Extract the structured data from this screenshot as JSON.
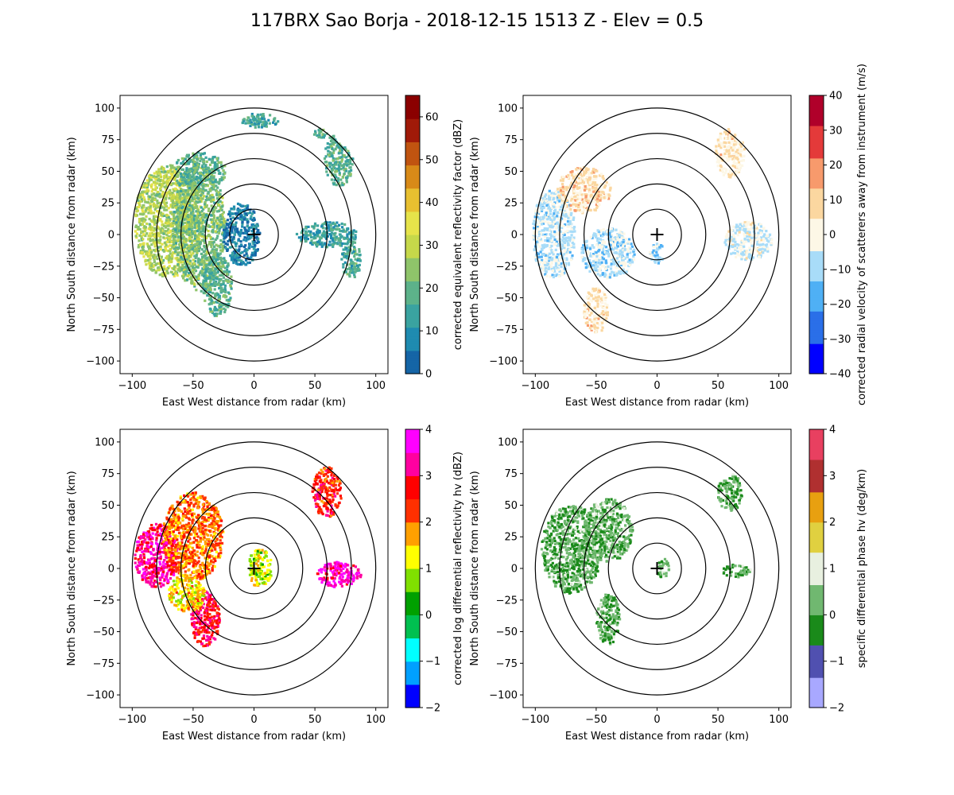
{
  "figure": {
    "title": "117BRX Sao Borja - 2018-12-15 1513 Z -  Elev = 0.5"
  },
  "chart_data": [
    {
      "type": "heatmap",
      "name": "reflectivity",
      "field": "corrected equivalent reflectivity factor",
      "xlabel": "East West distance from radar (km)",
      "ylabel": "North South distance from radar (km)",
      "xlim": [
        -110,
        110
      ],
      "ylim": [
        -110,
        110
      ],
      "xticks": [
        -100,
        -50,
        0,
        50,
        100
      ],
      "yticks": [
        -100,
        -75,
        -50,
        -25,
        0,
        25,
        50,
        75,
        100
      ],
      "range_rings_km": [
        20,
        40,
        60,
        80,
        100
      ],
      "radar_location": [
        0,
        0
      ],
      "colorbar": {
        "label": "corrected equivalent reflectivity factor (dBZ)",
        "range": [
          0,
          65
        ],
        "ticks": [
          0,
          10,
          20,
          30,
          40,
          50,
          60
        ],
        "colors": [
          "#1565a6",
          "#1f8bb0",
          "#3aa3a0",
          "#5db28a",
          "#8fc46a",
          "#c6d84a",
          "#e6e34a",
          "#e8c030",
          "#d88a18",
          "#c05410",
          "#a01a08",
          "#8b0000"
        ]
      },
      "echoes": [
        {
          "x": -70,
          "y": 10,
          "rx": 28,
          "ry": 45,
          "value": 28
        },
        {
          "x": -45,
          "y": 5,
          "rx": 22,
          "ry": 50,
          "value": 22
        },
        {
          "x": -30,
          "y": -40,
          "rx": 12,
          "ry": 25,
          "value": 18
        },
        {
          "x": -45,
          "y": 50,
          "rx": 22,
          "ry": 15,
          "value": 18
        },
        {
          "x": -10,
          "y": 0,
          "rx": 15,
          "ry": 25,
          "value": 6
        },
        {
          "x": 70,
          "y": 60,
          "rx": 12,
          "ry": 22,
          "value": 18
        },
        {
          "x": 60,
          "y": 0,
          "rx": 25,
          "ry": 10,
          "value": 14
        },
        {
          "x": 80,
          "y": -20,
          "rx": 8,
          "ry": 15,
          "value": 15
        },
        {
          "x": 5,
          "y": 90,
          "rx": 15,
          "ry": 6,
          "value": 15
        },
        {
          "x": 55,
          "y": 80,
          "rx": 6,
          "ry": 4,
          "value": 18
        }
      ]
    },
    {
      "type": "heatmap",
      "name": "velocity",
      "field": "corrected radial velocity of scatterers away from instrument",
      "xlabel": "East West distance from radar (km)",
      "ylabel": "North South distance from radar (km)",
      "xlim": [
        -110,
        110
      ],
      "ylim": [
        -110,
        110
      ],
      "xticks": [
        -100,
        -50,
        0,
        50,
        100
      ],
      "yticks": [
        -100,
        -75,
        -50,
        -25,
        0,
        25,
        50,
        75,
        100
      ],
      "range_rings_km": [
        20,
        40,
        60,
        80,
        100
      ],
      "radar_location": [
        0,
        0
      ],
      "colorbar": {
        "label": "corrected radial velocity of scatterers away from instrument (m/s)",
        "range": [
          -40,
          40
        ],
        "ticks": [
          -40,
          -30,
          -20,
          -10,
          0,
          10,
          20,
          30,
          40
        ],
        "colors": [
          "#0000ff",
          "#2a6fe8",
          "#4fb0f5",
          "#a8dcf8",
          "#fdf7e6",
          "#fbd7a0",
          "#f79a6c",
          "#e43a3a",
          "#b0002a"
        ]
      },
      "echoes": [
        {
          "x": -85,
          "y": 0,
          "rx": 18,
          "ry": 35,
          "value": -7
        },
        {
          "x": -40,
          "y": -15,
          "rx": 22,
          "ry": 20,
          "value": -8
        },
        {
          "x": -60,
          "y": 35,
          "rx": 22,
          "ry": 18,
          "value": 7
        },
        {
          "x": -50,
          "y": -60,
          "rx": 10,
          "ry": 18,
          "value": 6
        },
        {
          "x": 60,
          "y": 65,
          "rx": 12,
          "ry": 20,
          "value": 5
        },
        {
          "x": 75,
          "y": -5,
          "rx": 20,
          "ry": 15,
          "value": -3
        },
        {
          "x": 0,
          "y": -15,
          "rx": 6,
          "ry": 8,
          "value": -10
        }
      ]
    },
    {
      "type": "heatmap",
      "name": "differential_reflectivity",
      "field": "corrected log differential reflectivity hv",
      "xlabel": "East West distance from radar (km)",
      "ylabel": "North South distance from radar (km)",
      "xlim": [
        -110,
        110
      ],
      "ylim": [
        -110,
        110
      ],
      "xticks": [
        -100,
        -50,
        0,
        50,
        100
      ],
      "yticks": [
        -100,
        -75,
        -50,
        -25,
        0,
        25,
        50,
        75,
        100
      ],
      "range_rings_km": [
        20,
        40,
        60,
        80,
        100
      ],
      "radar_location": [
        0,
        0
      ],
      "colorbar": {
        "label": "corrected log differential reflectivity hv (dBZ)",
        "range": [
          -2,
          4
        ],
        "ticks": [
          -2,
          -1,
          0,
          1,
          2,
          3,
          4
        ],
        "colors": [
          "#0000ff",
          "#00a0ff",
          "#00ffff",
          "#00c050",
          "#00a000",
          "#80e000",
          "#ffff00",
          "#ffa000",
          "#ff3000",
          "#ff0000",
          "#ff00a0",
          "#ff00ff"
        ]
      },
      "echoes": [
        {
          "x": -80,
          "y": 10,
          "rx": 18,
          "ry": 25,
          "value": 3.2
        },
        {
          "x": -50,
          "y": 25,
          "rx": 25,
          "ry": 35,
          "value": 2.0
        },
        {
          "x": -40,
          "y": -40,
          "rx": 12,
          "ry": 22,
          "value": 2.8
        },
        {
          "x": -55,
          "y": -20,
          "rx": 15,
          "ry": 15,
          "value": 1.4
        },
        {
          "x": 60,
          "y": 60,
          "rx": 12,
          "ry": 20,
          "value": 2.5
        },
        {
          "x": 70,
          "y": -5,
          "rx": 18,
          "ry": 10,
          "value": 3.5
        },
        {
          "x": 5,
          "y": 0,
          "rx": 10,
          "ry": 15,
          "value": 1.0
        }
      ]
    },
    {
      "type": "heatmap",
      "name": "specific_differential_phase",
      "field": "specific differential phase hv",
      "xlabel": "East West distance from radar (km)",
      "ylabel": "North South distance from radar (km)",
      "xlim": [
        -110,
        110
      ],
      "ylim": [
        -110,
        110
      ],
      "xticks": [
        -100,
        -50,
        0,
        50,
        100
      ],
      "yticks": [
        -100,
        -75,
        -50,
        -25,
        0,
        25,
        50,
        75,
        100
      ],
      "range_rings_km": [
        20,
        40,
        60,
        80,
        100
      ],
      "radar_location": [
        0,
        0
      ],
      "colorbar": {
        "label": "specific differential phase hv (deg/km)",
        "range": [
          -2,
          4
        ],
        "ticks": [
          -2,
          -1,
          0,
          1,
          2,
          3,
          4
        ],
        "colors": [
          "#a8a8ff",
          "#5050b0",
          "#1a8a1a",
          "#70b870",
          "#e8f0e0",
          "#e0d040",
          "#e8a010",
          "#b03030",
          "#e84060"
        ]
      },
      "echoes": [
        {
          "x": -70,
          "y": 15,
          "rx": 25,
          "ry": 35,
          "value": 0.1
        },
        {
          "x": -40,
          "y": 30,
          "rx": 20,
          "ry": 25,
          "value": 0.2
        },
        {
          "x": -40,
          "y": -40,
          "rx": 10,
          "ry": 20,
          "value": 0.1
        },
        {
          "x": 60,
          "y": 60,
          "rx": 10,
          "ry": 15,
          "value": 0.1
        },
        {
          "x": 65,
          "y": -2,
          "rx": 12,
          "ry": 5,
          "value": 0.1
        },
        {
          "x": 5,
          "y": 0,
          "rx": 5,
          "ry": 8,
          "value": 0.2
        }
      ]
    }
  ]
}
